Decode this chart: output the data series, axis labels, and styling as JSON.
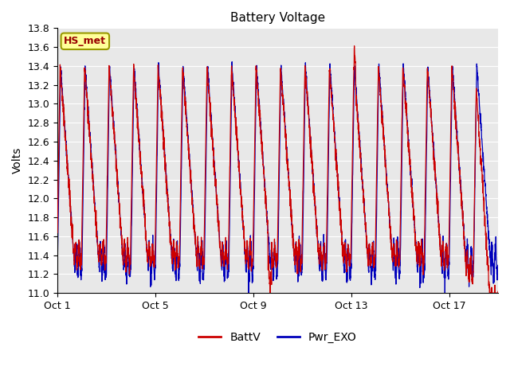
{
  "title": "Battery Voltage",
  "ylabel": "Volts",
  "xlabel": "",
  "ylim": [
    11.0,
    13.8
  ],
  "yticks": [
    11.0,
    11.2,
    11.4,
    11.6,
    11.8,
    12.0,
    12.2,
    12.4,
    12.6,
    12.8,
    13.0,
    13.2,
    13.4,
    13.6,
    13.8
  ],
  "xtick_labels": [
    "Oct 1",
    "Oct 5",
    "Oct 9",
    "Oct 13",
    "Oct 17"
  ],
  "xtick_positions": [
    0,
    4,
    8,
    12,
    16
  ],
  "n_days": 18,
  "plot_bg_color": "#e8e8e8",
  "fig_bg_color": "#ffffff",
  "grid_color": "#ffffff",
  "line1_color": "#cc0000",
  "line2_color": "#0000bb",
  "line1_label": "BattV",
  "line2_label": "Pwr_EXO",
  "annotation_text": "HS_met",
  "annotation_color": "#990000",
  "annotation_bg": "#ffff99",
  "annotation_border": "#999900"
}
